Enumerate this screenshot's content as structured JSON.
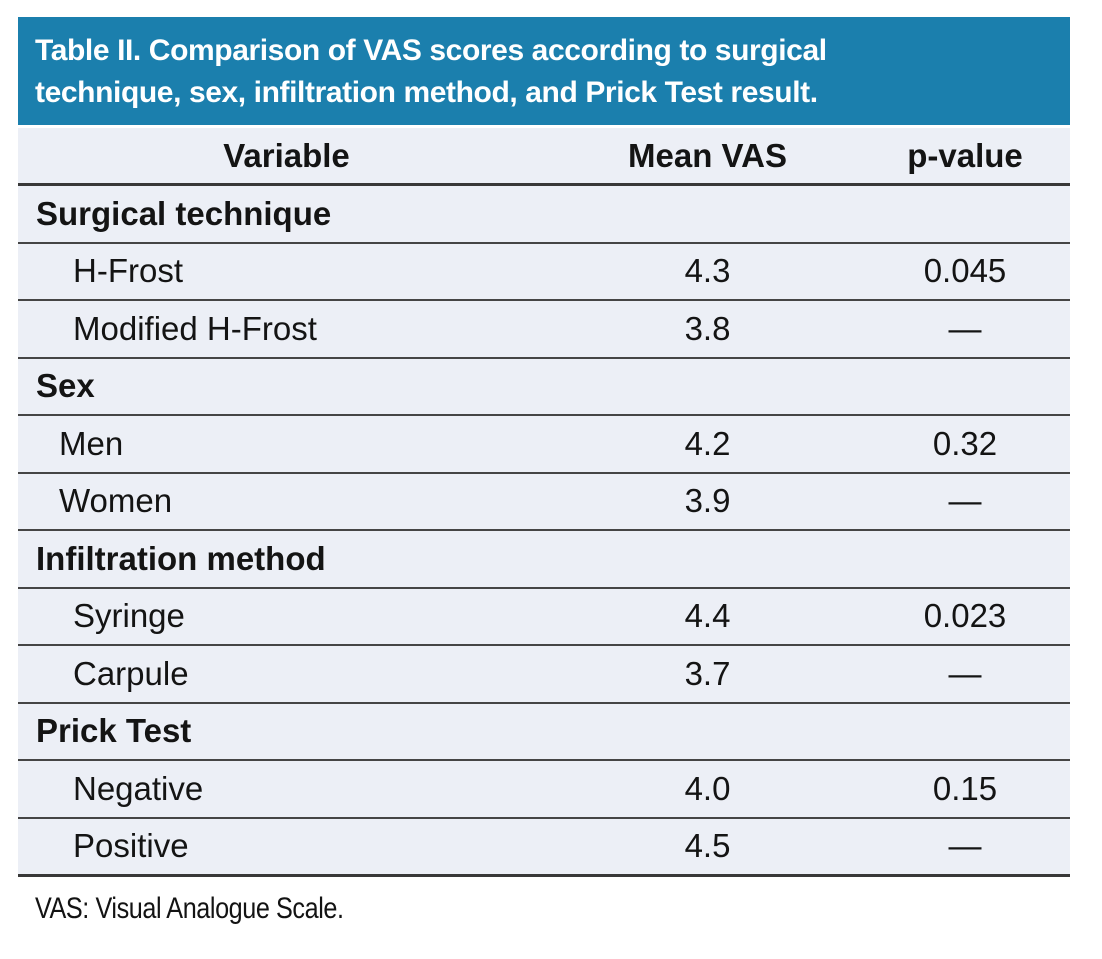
{
  "title": {
    "line1": "Table II. Comparison of VAS scores according to surgical",
    "line2": "technique, sex, infiltration method, and Prick Test result."
  },
  "columns": [
    "Variable",
    "Mean VAS",
    "p-value"
  ],
  "rows": [
    {
      "type": "section",
      "indent": "none",
      "label": "Surgical technique",
      "mean": "",
      "p": ""
    },
    {
      "type": "item",
      "indent": "deep",
      "label": "H-Frost",
      "mean": "4.3",
      "p": "0.045"
    },
    {
      "type": "item",
      "indent": "deep",
      "label": "Modified H-Frost",
      "mean": "3.8",
      "p": "—"
    },
    {
      "type": "section",
      "indent": "none",
      "label": "Sex",
      "mean": "",
      "p": ""
    },
    {
      "type": "item",
      "indent": "shallow",
      "label": "Men",
      "mean": "4.2",
      "p": "0.32"
    },
    {
      "type": "item",
      "indent": "shallow",
      "label": "Women",
      "mean": "3.9",
      "p": "—"
    },
    {
      "type": "section",
      "indent": "none",
      "label": "Infiltration method",
      "mean": "",
      "p": ""
    },
    {
      "type": "item",
      "indent": "deep",
      "label": "Syringe",
      "mean": "4.4",
      "p": "0.023"
    },
    {
      "type": "item",
      "indent": "deep",
      "label": "Carpule",
      "mean": "3.7",
      "p": "—"
    },
    {
      "type": "section",
      "indent": "none",
      "label": "Prick Test",
      "mean": "",
      "p": ""
    },
    {
      "type": "item",
      "indent": "deep",
      "label": "Negative",
      "mean": "4.0",
      "p": "0.15"
    },
    {
      "type": "item",
      "indent": "deep",
      "label": "Positive",
      "mean": "4.5",
      "p": "—"
    }
  ],
  "footnote": "VAS: Visual Analogue Scale.",
  "colors": {
    "title_bar_bg": "#1B7FAD",
    "title_text": "#FFFFFF",
    "row_bg": "#ECEFF6",
    "border_line": "#454545",
    "body_text": "#141414",
    "page_bg": "#FFFFFF"
  }
}
